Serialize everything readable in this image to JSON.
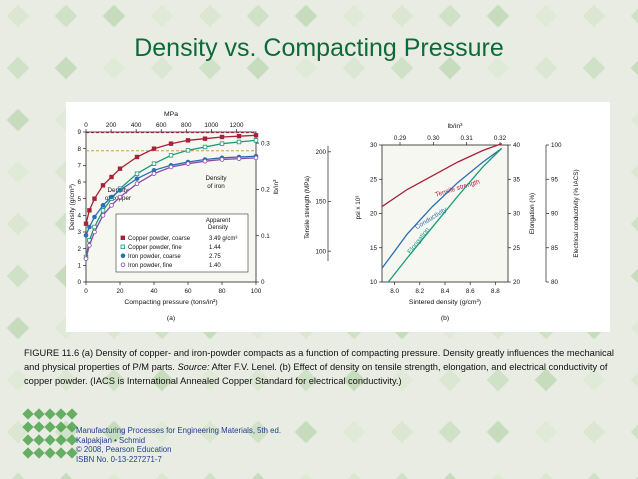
{
  "slide_title": "Density vs. Compacting Pressure",
  "caption": {
    "fig_label": "FIGURE 11.6",
    "text_a": " (a) Density of copper- and iron-powder compacts as a function of compacting pressure. Density greatly influences the mechanical and physical properties of P/M parts. ",
    "source_label": "Source:",
    "text_b": " After F.V. Lenel. (b) Effect of density on tensile strength, elongation, and electrical conductivity of copper powder. (IACS is International Annealed Copper Standard for electrical conductivity.)"
  },
  "footer": {
    "line1": "Manufacturing Processes for Engineering Materials, 5th ed.",
    "line2": "Kalpakjian • Schmid",
    "line3": "© 2008, Pearson Education",
    "line4": "ISBN No. 0-13-227271-7"
  },
  "chart_data": [
    {
      "type": "line",
      "panel_label": "(a)",
      "xlabel": "Compacting pressure (tons/in²)",
      "ylabel": "Density (g/cm³)",
      "top_axis_label": "MPa",
      "top_ticks": [
        0,
        200,
        400,
        600,
        800,
        1000,
        1200
      ],
      "right_axis_label": "lb/in³",
      "right_ticks": [
        0,
        0.1,
        0.2,
        0.3
      ],
      "xlim": [
        0,
        100
      ],
      "ylim": [
        0,
        9
      ],
      "x_ticks": [
        0,
        20,
        40,
        60,
        80,
        100
      ],
      "y_ticks": [
        0,
        1,
        2,
        3,
        4,
        5,
        6,
        7,
        8,
        9
      ],
      "legend_header": "Apparent\nDensity",
      "series": [
        {
          "name": "Copper powder, coarse",
          "apparent_density": "3.49 g/cm³",
          "color": "#a8213a",
          "marker": "square-filled",
          "x": [
            0,
            2,
            5,
            10,
            15,
            20,
            30,
            40,
            50,
            60,
            70,
            80,
            90,
            100
          ],
          "y": [
            3.5,
            4.3,
            5.0,
            5.8,
            6.3,
            6.8,
            7.5,
            8.0,
            8.3,
            8.5,
            8.6,
            8.7,
            8.75,
            8.8
          ]
        },
        {
          "name": "Copper powder, fine",
          "apparent_density": "1.44",
          "color": "#1a9a78",
          "marker": "square-open",
          "x": [
            0,
            2,
            5,
            10,
            15,
            20,
            30,
            40,
            50,
            60,
            70,
            80,
            90,
            100
          ],
          "y": [
            1.5,
            2.5,
            3.3,
            4.3,
            5.0,
            5.6,
            6.5,
            7.1,
            7.6,
            7.9,
            8.1,
            8.3,
            8.4,
            8.5
          ]
        },
        {
          "name": "Iron powder, coarse",
          "apparent_density": "2.75",
          "color": "#2a6fb0",
          "marker": "circle-filled",
          "x": [
            0,
            2,
            5,
            10,
            15,
            20,
            30,
            40,
            50,
            60,
            70,
            80,
            90,
            100
          ],
          "y": [
            2.8,
            3.3,
            3.9,
            4.6,
            5.1,
            5.5,
            6.2,
            6.7,
            7.0,
            7.2,
            7.35,
            7.45,
            7.5,
            7.55
          ]
        },
        {
          "name": "Iron powder, fine",
          "apparent_density": "1.40",
          "color": "#8a4aa8",
          "marker": "circle-open",
          "x": [
            0,
            2,
            5,
            10,
            15,
            20,
            30,
            40,
            50,
            60,
            70,
            80,
            90,
            100
          ],
          "y": [
            1.4,
            2.2,
            3.0,
            4.0,
            4.6,
            5.1,
            5.9,
            6.5,
            6.9,
            7.1,
            7.25,
            7.35,
            7.4,
            7.45
          ]
        }
      ],
      "reference_lines": [
        {
          "label": "Density\nof copper",
          "y": 8.96,
          "color": "#a8213a"
        },
        {
          "label": "Density\nof iron",
          "y": 7.87,
          "color": "#c98a2a"
        }
      ]
    },
    {
      "type": "line",
      "panel_label": "(b)",
      "xlabel": "Sintered density (g/cm³)",
      "xlim": [
        7.9,
        8.9
      ],
      "x_ticks": [
        8.0,
        8.2,
        8.4,
        8.6,
        8.8
      ],
      "top_axis_label": "lb/in³",
      "top_ticks": [
        0.29,
        0.3,
        0.31,
        0.32
      ],
      "left_axis_psi": {
        "label": "psi x 10³",
        "ticks": [
          10,
          15,
          20,
          25,
          30
        ]
      },
      "left_axis_mpa": {
        "label": "Tensile strength (MPa)",
        "ticks": [
          100,
          150,
          200
        ]
      },
      "right_axis_elongation": {
        "label": "Elongation (%)",
        "ticks": [
          20,
          25,
          30,
          35,
          40
        ]
      },
      "right_axis_conductivity": {
        "label": "Electrical conductivity (% IACS)",
        "ticks": [
          80,
          85,
          90,
          95,
          100
        ]
      },
      "series": [
        {
          "name": "Tensile strength",
          "axis": "psi x 10³",
          "color": "#a8213a",
          "x": [
            7.9,
            8.1,
            8.3,
            8.5,
            8.7,
            8.85
          ],
          "y": [
            21,
            23.5,
            25.5,
            27.5,
            29.2,
            30.2
          ]
        },
        {
          "name": "Conductivity",
          "axis": "% IACS",
          "color": "#2a6fb0",
          "x": [
            7.9,
            8.1,
            8.3,
            8.5,
            8.7,
            8.85
          ],
          "y": [
            82,
            87,
            91,
            94.5,
            97.5,
            99.5
          ]
        },
        {
          "name": "Elongation",
          "axis": "%",
          "color": "#1a9a78",
          "x": [
            7.95,
            8.1,
            8.3,
            8.5,
            8.7,
            8.85
          ],
          "y": [
            20,
            23.5,
            28,
            32.5,
            36.8,
            39.5
          ]
        }
      ]
    }
  ]
}
